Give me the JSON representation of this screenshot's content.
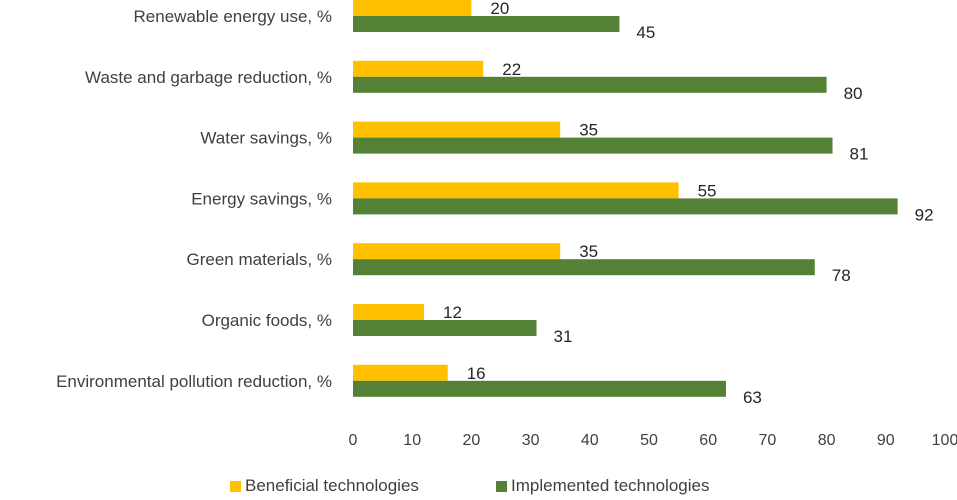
{
  "chart_data": {
    "type": "bar",
    "orientation": "horizontal",
    "title": "",
    "xlabel": "",
    "ylabel": "",
    "xlim": [
      0,
      100
    ],
    "x_ticks": [
      "0",
      "10",
      "20",
      "30",
      "40",
      "50",
      "60",
      "70",
      "80",
      "90",
      "100"
    ],
    "grid": false,
    "categories": [
      "Renewable energy use, %",
      "Waste and garbage reduction, %",
      "Water savings, %",
      "Energy savings, %",
      "Green materials, %",
      "Organic foods, %",
      "Environmental pollution reduction, %"
    ],
    "series": [
      {
        "name": "Beneficial technologies",
        "color": "#FFC000",
        "values": [
          20,
          22,
          35,
          55,
          35,
          12,
          16
        ]
      },
      {
        "name": "Implemented technologies",
        "color": "#538135",
        "values": [
          45,
          80,
          81,
          92,
          78,
          31,
          63
        ]
      }
    ],
    "legend_position": "bottom",
    "data_labels": true
  }
}
